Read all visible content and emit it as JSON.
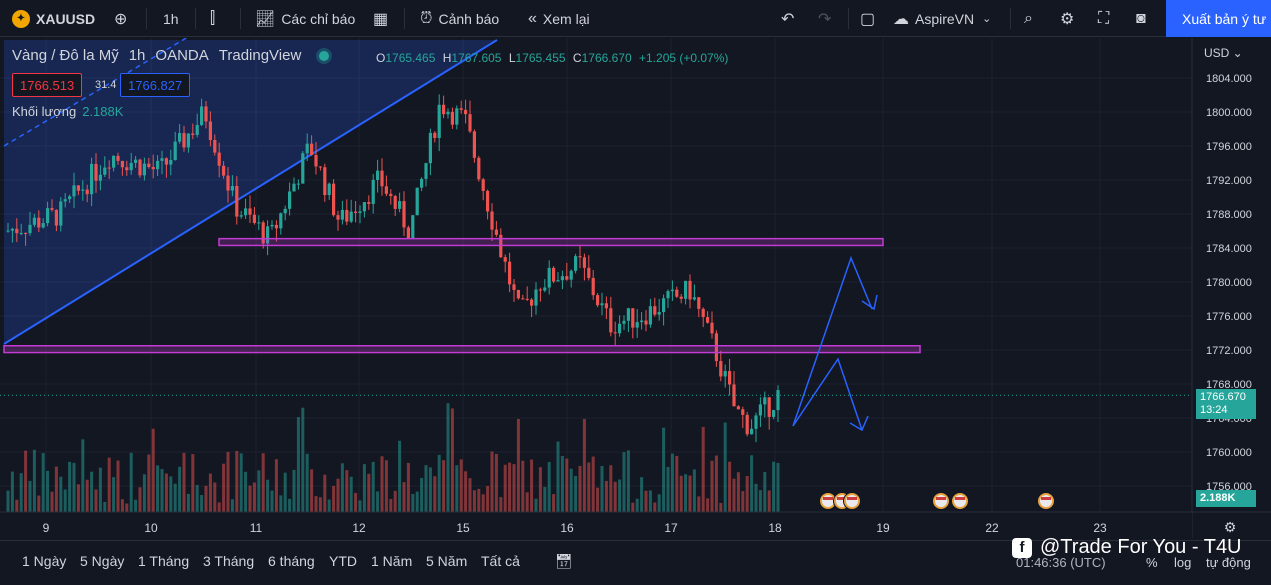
{
  "toolbar": {
    "symbol": "XAUUSD",
    "interval": "1h",
    "indicators": "Các chỉ báo",
    "alerts": "Cảnh báo",
    "replay": "Xem lại",
    "account": "AspireVN",
    "publish": "Xuất bản ý tư"
  },
  "legend": {
    "name": "Vàng / Đô la Mỹ",
    "interval": "1h",
    "broker": "OANDA",
    "platform": "TradingView",
    "o_label": "O",
    "o": "1765.465",
    "h_label": "H",
    "h": "1767.605",
    "l_label": "L",
    "l": "1765.455",
    "c_label": "C",
    "c": "1766.670",
    "change": "+1.205 (+0.07%)",
    "sell": "1766.513",
    "spread": "31.4",
    "buy": "1766.827",
    "volume_label": "Khối lượng",
    "volume": "2.188K"
  },
  "price_axis": {
    "currency": "USD",
    "ticks": [
      "1804.000",
      "1800.000",
      "1796.000",
      "1792.000",
      "1788.000",
      "1784.000",
      "1780.000",
      "1776.000",
      "1772.000",
      "1768.000",
      "1764.000",
      "1760.000",
      "1756.000"
    ],
    "current_price": "1766.670",
    "countdown": "13:24",
    "volume_tag": "2.188K"
  },
  "time_axis": {
    "labels": [
      "9",
      "10",
      "11",
      "12",
      "15",
      "16",
      "17",
      "18",
      "19",
      "22",
      "23"
    ]
  },
  "chart_data": {
    "type": "candlestick",
    "ylim": [
      1752,
      1808
    ],
    "support_zones": [
      {
        "from": 1784.3,
        "to": 1785.1
      },
      {
        "from": 1771.7,
        "to": 1772.5
      }
    ],
    "last_close": 1766.67
  },
  "bottom": {
    "ranges": [
      "1 Ngày",
      "5 Ngày",
      "1 Tháng",
      "3 Tháng",
      "6 tháng",
      "YTD",
      "1 Năm",
      "5 Năm",
      "Tất cả"
    ],
    "brand": "@Trade For You - T4U",
    "clock": "01:46:36 (UTC)",
    "percent": "%",
    "log": "log",
    "auto": "tự động"
  },
  "colors": {
    "up": "#26a69a",
    "down": "#ef5350",
    "zone": "#c23bd4",
    "trend": "#2962ff"
  }
}
